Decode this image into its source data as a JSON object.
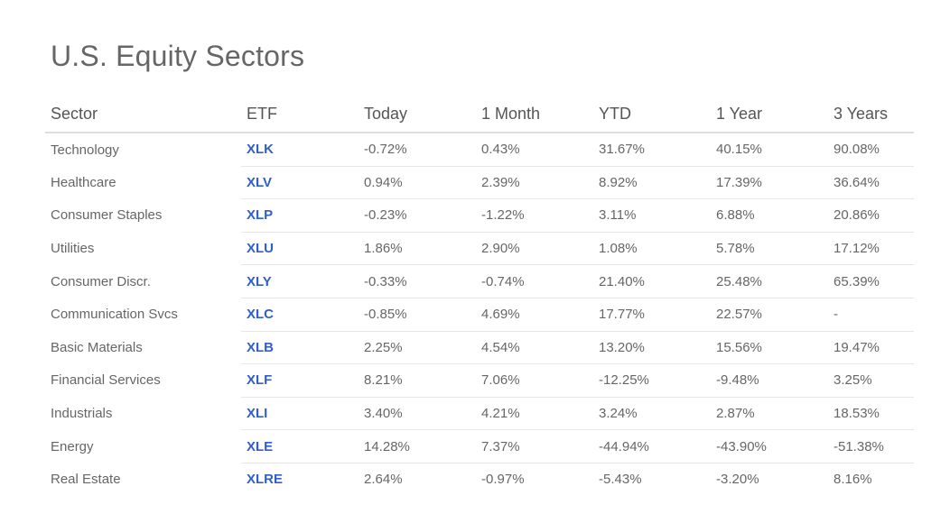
{
  "title": "U.S. Equity Sectors",
  "columns": {
    "sector": "Sector",
    "etf": "ETF",
    "today": "Today",
    "month": "1 Month",
    "ytd": "YTD",
    "year": "1 Year",
    "three_years": "3 Years"
  },
  "colors": {
    "positive": "#3f8a4a",
    "negative": "#c0504d",
    "ticker": "#2f5fc7"
  },
  "rows": [
    {
      "sector": "Technology",
      "etf": "XLK",
      "today": "-0.72%",
      "month": "0.43%",
      "ytd": "31.67%",
      "year": "40.15%",
      "three_years": "90.08%"
    },
    {
      "sector": "Healthcare",
      "etf": "XLV",
      "today": "0.94%",
      "month": "2.39%",
      "ytd": "8.92%",
      "year": "17.39%",
      "three_years": "36.64%"
    },
    {
      "sector": "Consumer Staples",
      "etf": "XLP",
      "today": "-0.23%",
      "month": "-1.22%",
      "ytd": "3.11%",
      "year": "6.88%",
      "three_years": "20.86%"
    },
    {
      "sector": "Utilities",
      "etf": "XLU",
      "today": "1.86%",
      "month": "2.90%",
      "ytd": "1.08%",
      "year": "5.78%",
      "three_years": "17.12%"
    },
    {
      "sector": "Consumer Discr.",
      "etf": "XLY",
      "today": "-0.33%",
      "month": "-0.74%",
      "ytd": "21.40%",
      "year": "25.48%",
      "three_years": "65.39%"
    },
    {
      "sector": "Communication Svcs",
      "etf": "XLC",
      "today": "-0.85%",
      "month": "4.69%",
      "ytd": "17.77%",
      "year": "22.57%",
      "three_years": "-"
    },
    {
      "sector": "Basic Materials",
      "etf": "XLB",
      "today": "2.25%",
      "month": "4.54%",
      "ytd": "13.20%",
      "year": "15.56%",
      "three_years": "19.47%"
    },
    {
      "sector": "Financial Services",
      "etf": "XLF",
      "today": "8.21%",
      "month": "7.06%",
      "ytd": "-12.25%",
      "year": "-9.48%",
      "three_years": "3.25%"
    },
    {
      "sector": "Industrials",
      "etf": "XLI",
      "today": "3.40%",
      "month": "4.21%",
      "ytd": "3.24%",
      "year": "2.87%",
      "three_years": "18.53%"
    },
    {
      "sector": "Energy",
      "etf": "XLE",
      "today": "14.28%",
      "month": "7.37%",
      "ytd": "-44.94%",
      "year": "-43.90%",
      "three_years": "-51.38%"
    },
    {
      "sector": "Real Estate",
      "etf": "XLRE",
      "today": "2.64%",
      "month": "-0.97%",
      "ytd": "-5.43%",
      "year": "-3.20%",
      "three_years": "8.16%"
    }
  ]
}
